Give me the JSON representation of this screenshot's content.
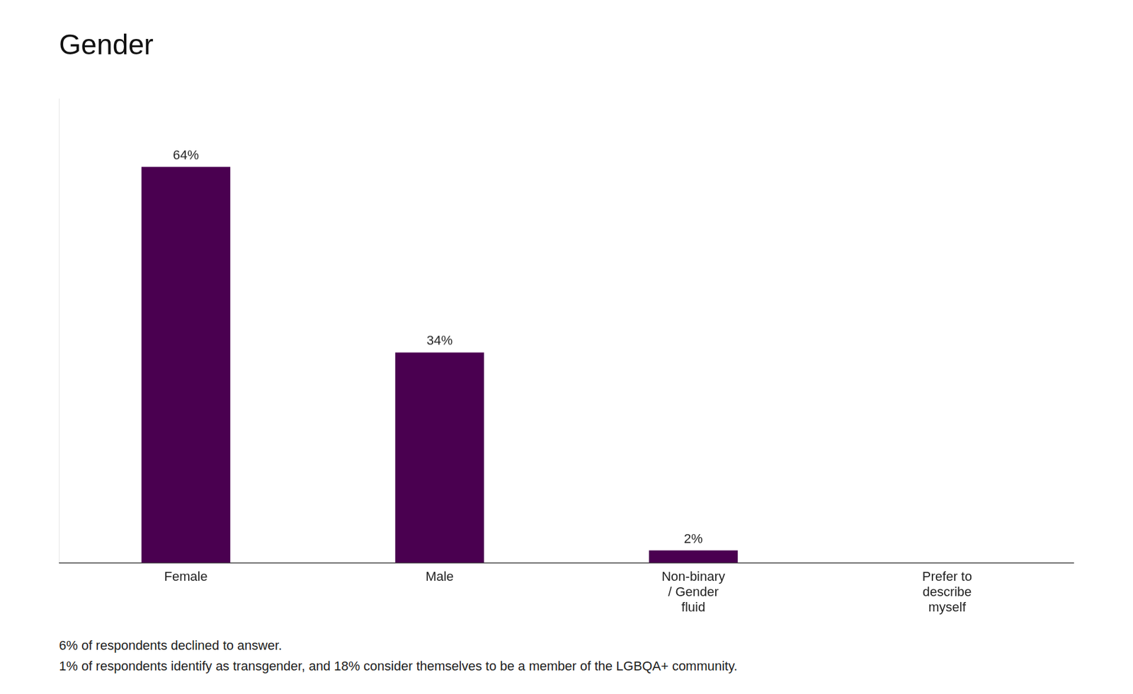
{
  "chart_data": {
    "type": "bar",
    "title": "Gender",
    "categories": [
      "Female",
      "Male",
      "Non-binary\n/ Gender\nfluid",
      "Prefer to\ndescribe\nmyself"
    ],
    "values": [
      64,
      34,
      2,
      0
    ],
    "value_labels": [
      "64%",
      "34%",
      "2%",
      null
    ],
    "color": "#4a0050",
    "ylim": [
      0,
      75
    ],
    "tick_labels": "x",
    "grid": false,
    "annotations": [
      "6% of respondents declined to answer.",
      "1% of respondents identify as transgender, and 18% consider themselves to be a member of the LGBQA+ community."
    ]
  }
}
